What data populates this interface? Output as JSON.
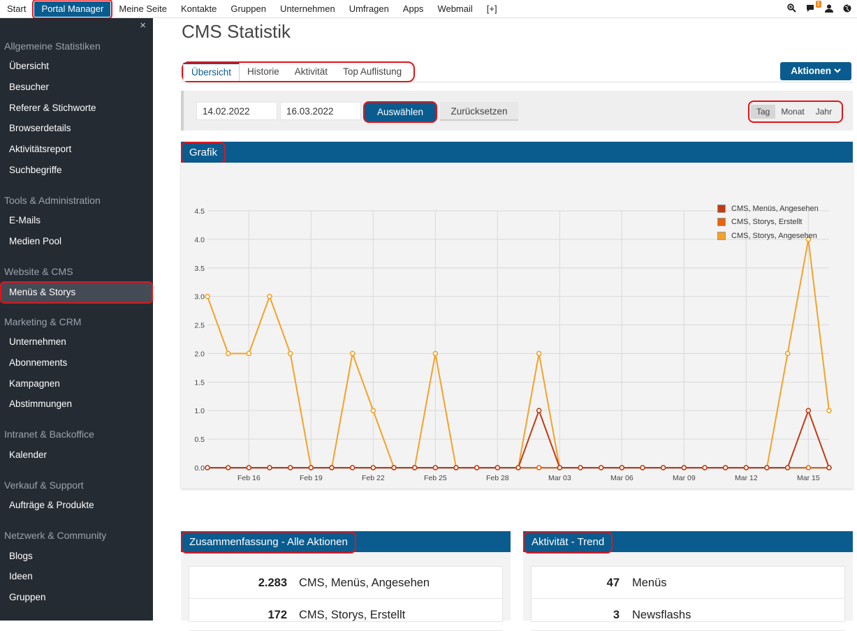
{
  "topnav": {
    "items": [
      "Start",
      "Portal Manager",
      "Meine Seite",
      "Kontakte",
      "Gruppen",
      "Unternehmen",
      "Umfragen",
      "Apps",
      "Webmail",
      "[+]"
    ],
    "active_index": 1,
    "notification_count": "1"
  },
  "sidebar": {
    "close": "×",
    "sections": [
      {
        "title": "Allgemeine Statistiken",
        "items": [
          "Übersicht",
          "Besucher",
          "Referer & Stichworte",
          "Browserdetails",
          "Aktivitätsreport",
          "Suchbegriffe"
        ]
      },
      {
        "title": "Tools & Administration",
        "items": [
          "E-Mails",
          "Medien Pool"
        ]
      },
      {
        "title": "Website & CMS",
        "items": [
          "Menüs & Storys"
        ]
      },
      {
        "title": "Marketing & CRM",
        "items": [
          "Unternehmen",
          "Abonnements",
          "Kampagnen",
          "Abstimmungen"
        ]
      },
      {
        "title": "Intranet & Backoffice",
        "items": [
          "Kalender"
        ]
      },
      {
        "title": "Verkauf & Support",
        "items": [
          "Aufträge & Produkte"
        ]
      },
      {
        "title": "Netzwerk & Community",
        "items": [
          "Blogs",
          "Ideen",
          "Gruppen"
        ]
      }
    ],
    "active_item": "Menüs & Storys"
  },
  "page": {
    "title": "CMS Statistik",
    "tabs": [
      "Übersicht",
      "Historie",
      "Aktivität",
      "Top Auflistung"
    ],
    "active_tab": 0,
    "aktionen_label": "Aktionen"
  },
  "filter": {
    "date_from": "14.02.2022",
    "date_to": "16.03.2022",
    "select_label": "Auswählen",
    "reset_label": "Zurücksetzen",
    "periods": [
      "Tag",
      "Monat",
      "Jahr"
    ],
    "active_period": 0
  },
  "colors": {
    "brand": "#0a5c8f",
    "highlight": "#e3141b",
    "series_menus": "#c23b14",
    "series_storys_erstellt": "#e5640f",
    "series_storys_angesehen": "#f4a228"
  },
  "chart_panel": {
    "title": "Grafik"
  },
  "chart_data": {
    "type": "line",
    "x": [
      "Feb 14",
      "Feb 15",
      "Feb 16",
      "Feb 17",
      "Feb 18",
      "Feb 19",
      "Feb 20",
      "Feb 21",
      "Feb 22",
      "Feb 23",
      "Feb 24",
      "Feb 25",
      "Feb 26",
      "Feb 27",
      "Feb 28",
      "Mar 01",
      "Mar 02",
      "Mar 03",
      "Mar 04",
      "Mar 05",
      "Mar 06",
      "Mar 07",
      "Mar 08",
      "Mar 09",
      "Mar 10",
      "Mar 11",
      "Mar 12",
      "Mar 13",
      "Mar 14",
      "Mar 15",
      "Mar 16"
    ],
    "x_tick_labels": [
      "Feb 16",
      "Feb 19",
      "Feb 22",
      "Feb 25",
      "Feb 28",
      "Mar 03",
      "Mar 06",
      "Mar 09",
      "Mar 12",
      "Mar 15"
    ],
    "x_tick_dates": [
      "Feb 16",
      "Feb 19",
      "Feb 22",
      "Feb 25",
      "Feb 28",
      "Mar 03",
      "Mar 06",
      "Mar 09",
      "Mar 12",
      "Mar 15"
    ],
    "y_ticks": [
      "0.0",
      "0.5",
      "1.0",
      "1.5",
      "2.0",
      "2.5",
      "3.0",
      "3.5",
      "4.0",
      "4.5"
    ],
    "ylim": [
      0,
      4.5
    ],
    "grid": true,
    "legend_position": "top-right",
    "series": [
      {
        "name": "CMS, Menüs, Angesehen",
        "color": "#c23b14",
        "values": [
          0,
          0,
          0,
          0,
          0,
          0,
          0,
          0,
          0,
          0,
          0,
          0,
          0,
          0,
          0,
          0,
          1,
          0,
          0,
          0,
          0,
          0,
          0,
          0,
          0,
          0,
          0,
          0,
          0,
          1,
          0
        ]
      },
      {
        "name": "CMS, Storys, Erstellt",
        "color": "#e5640f",
        "values": [
          0,
          0,
          0,
          0,
          0,
          0,
          0,
          0,
          0,
          0,
          0,
          0,
          0,
          0,
          0,
          0,
          0,
          0,
          0,
          0,
          0,
          0,
          0,
          0,
          0,
          0,
          0,
          0,
          0,
          0,
          0
        ]
      },
      {
        "name": "CMS, Storys, Angesehen",
        "color": "#f4a228",
        "values": [
          3,
          2,
          2,
          3,
          2,
          0,
          0,
          2,
          1,
          0,
          0,
          2,
          0,
          0,
          0,
          0,
          2,
          0,
          0,
          0,
          0,
          0,
          0,
          0,
          0,
          0,
          0,
          0,
          2,
          4,
          1
        ]
      }
    ]
  },
  "summary": {
    "title": "Zusammenfassung - Alle Aktionen",
    "rows": [
      {
        "value": "2.283",
        "label": "CMS, Menüs, Angesehen"
      },
      {
        "value": "172",
        "label": "CMS, Storys, Erstellt"
      }
    ]
  },
  "trend": {
    "title": "Aktivität - Trend",
    "rows": [
      {
        "value": "47",
        "label": "Menüs"
      },
      {
        "value": "3",
        "label": "Newsflashs"
      }
    ]
  }
}
